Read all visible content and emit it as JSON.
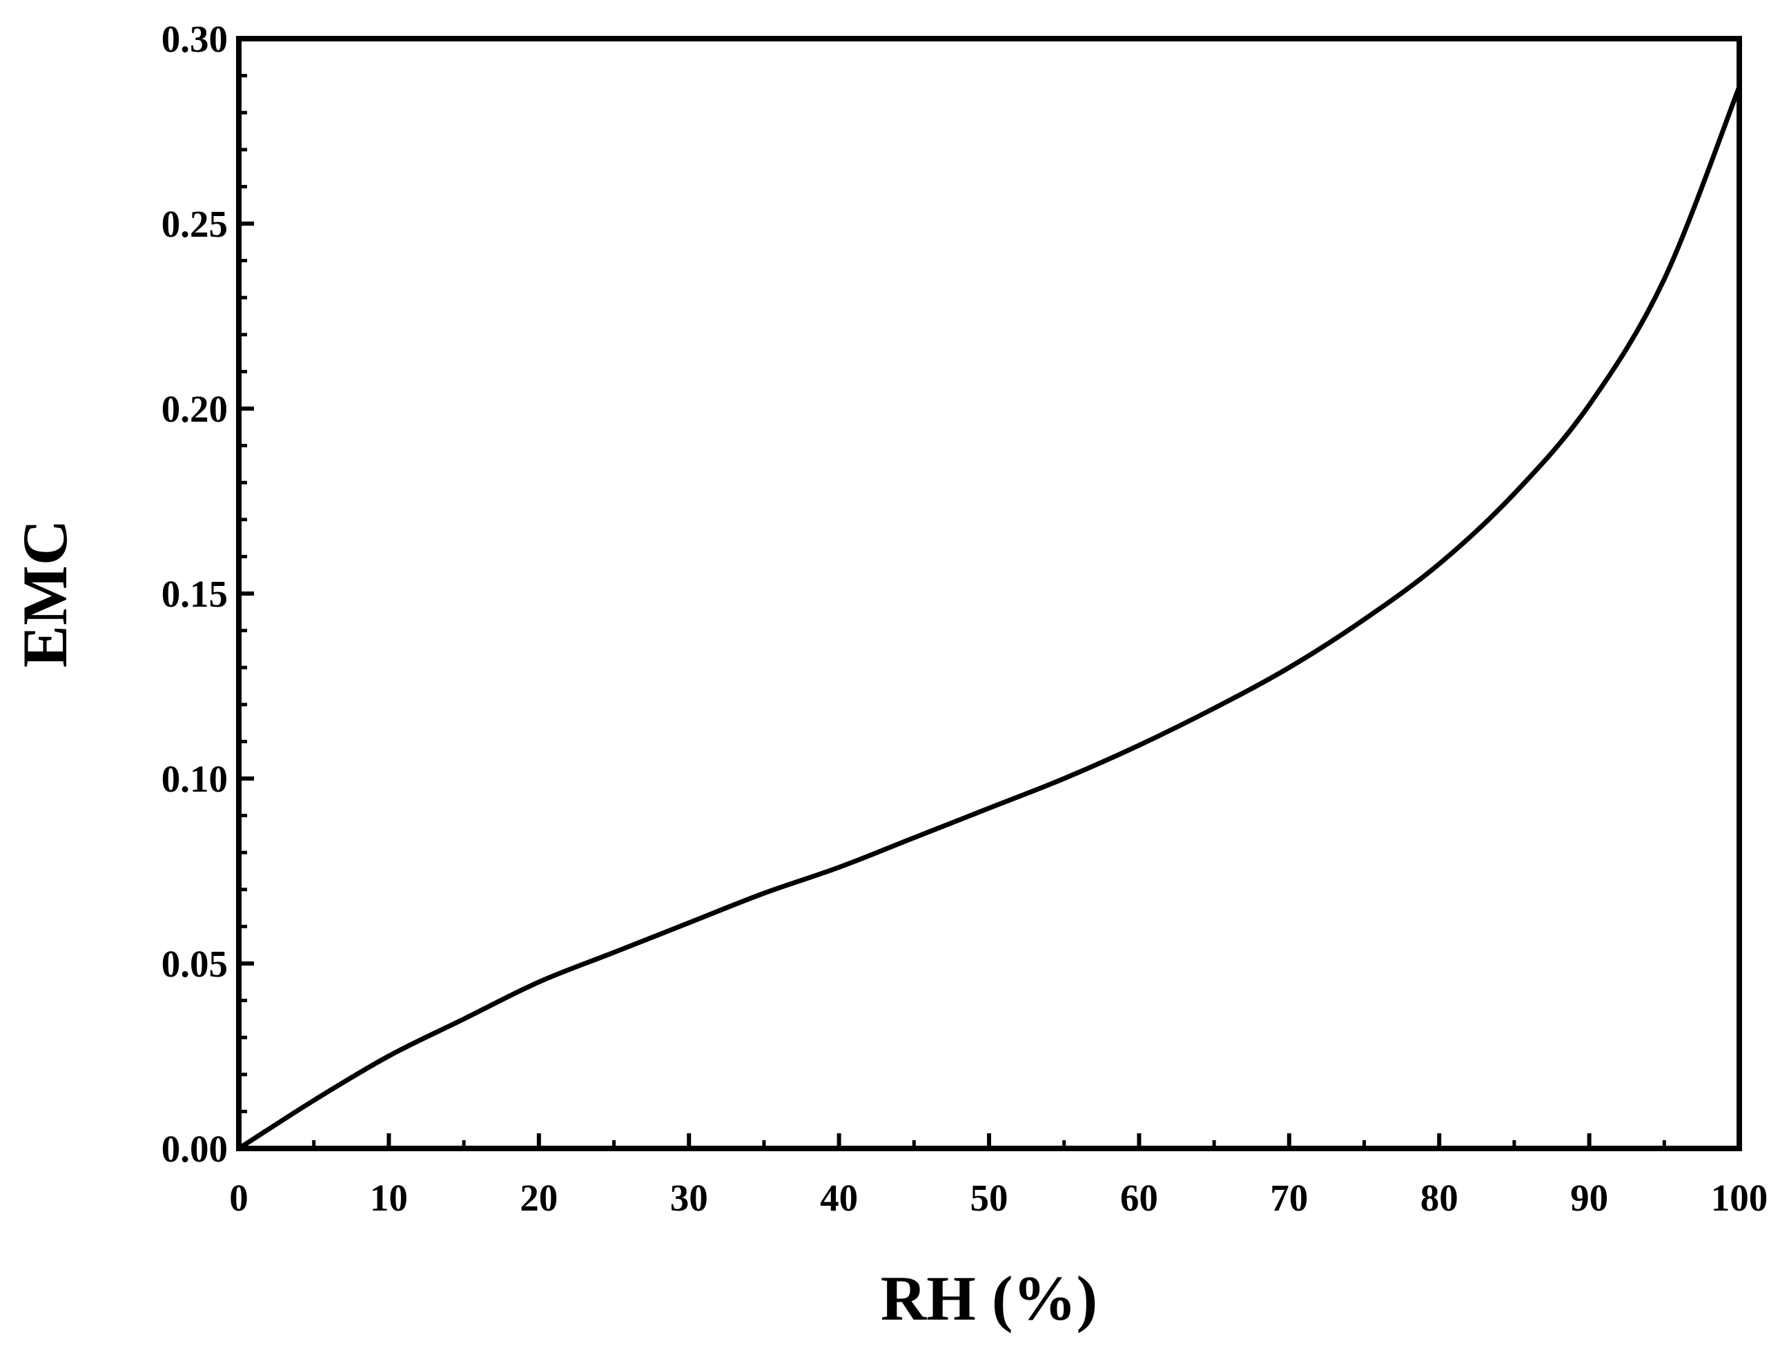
{
  "chart_data": {
    "type": "line",
    "title": "",
    "xlabel": "RH (%)",
    "ylabel": "EMC",
    "xlim": [
      0,
      100
    ],
    "ylim": [
      0,
      0.3
    ],
    "x_ticks": [
      0,
      10,
      20,
      30,
      40,
      50,
      60,
      70,
      80,
      90,
      100
    ],
    "x_tick_labels": [
      "0",
      "10",
      "20",
      "30",
      "40",
      "50",
      "60",
      "70",
      "80",
      "90",
      "100"
    ],
    "y_ticks": [
      0,
      0.05,
      0.1,
      0.15,
      0.2,
      0.25,
      0.3
    ],
    "y_tick_labels": [
      "0.00",
      "0.05",
      "0.10",
      "0.15",
      "0.20",
      "0.25",
      "0.30"
    ],
    "x_minor_step": 5,
    "y_minor_step": 0.01,
    "grid": false,
    "legend": "none",
    "line_color": "#000000",
    "series": [
      {
        "x": [
          0,
          5,
          10,
          15,
          20,
          25,
          30,
          35,
          40,
          45,
          50,
          55,
          60,
          65,
          70,
          75,
          80,
          85,
          90,
          95,
          100
        ],
        "values": [
          0.0,
          0.013,
          0.025,
          0.035,
          0.045,
          0.053,
          0.061,
          0.069,
          0.076,
          0.084,
          0.092,
          0.1,
          0.109,
          0.119,
          0.13,
          0.143,
          0.158,
          0.177,
          0.201,
          0.235,
          0.287
        ]
      }
    ]
  }
}
